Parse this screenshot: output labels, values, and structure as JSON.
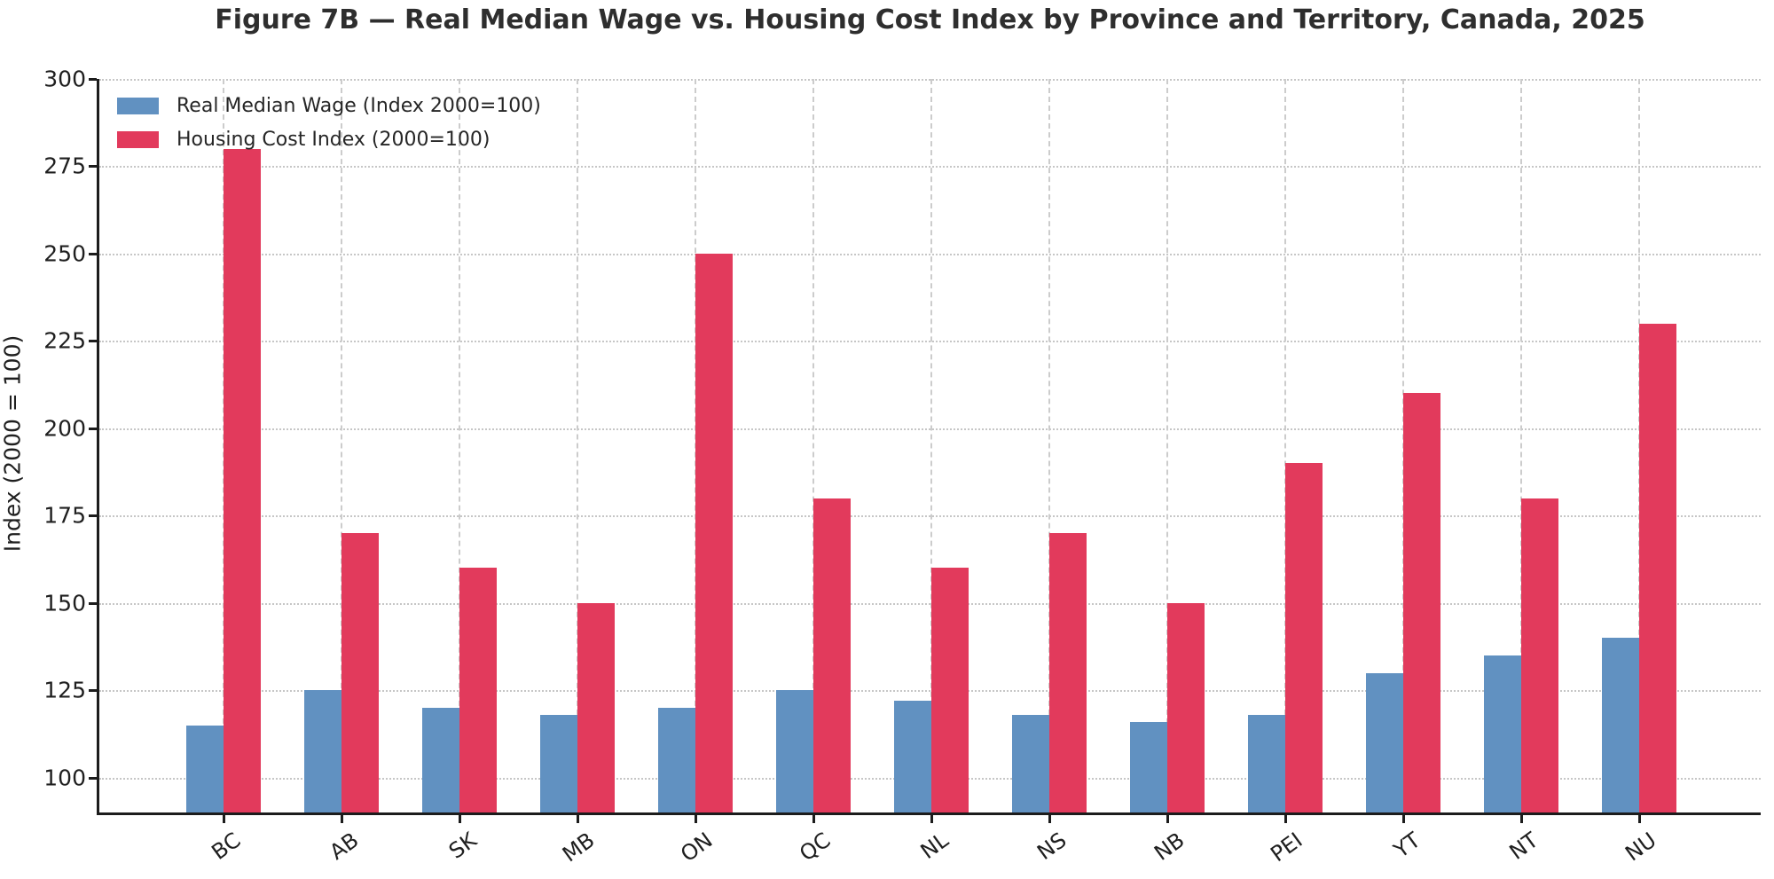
{
  "title": "Figure 7B — Real Median Wage vs. Housing Cost Index by Province and Territory, Canada, 2025",
  "chart_data": {
    "type": "bar",
    "title": "Figure 7B — Real Median Wage vs. Housing Cost Index by Province and Territory, Canada, 2025",
    "categories": [
      "BC",
      "AB",
      "SK",
      "MB",
      "ON",
      "QC",
      "NL",
      "NS",
      "NB",
      "PEI",
      "YT",
      "NT",
      "NU"
    ],
    "series": [
      {
        "name": "Real Median Wage (Index 2000=100)",
        "color": "#6191C1",
        "values": [
          115,
          125,
          120,
          118,
          120,
          125,
          122,
          118,
          116,
          118,
          130,
          135,
          140
        ]
      },
      {
        "name": "Housing Cost Index (2000=100)",
        "color": "#E23A5C",
        "values": [
          280,
          170,
          160,
          150,
          250,
          180,
          160,
          170,
          150,
          190,
          210,
          180,
          230
        ]
      }
    ],
    "xlabel": "",
    "ylabel": "Index (2000 = 100)",
    "ylim": [
      90,
      300
    ],
    "yticks": [
      100,
      125,
      150,
      175,
      200,
      225,
      250,
      275,
      300
    ],
    "grid": true,
    "legend_position": "upper-left",
    "x_tick_rotation": 36
  }
}
